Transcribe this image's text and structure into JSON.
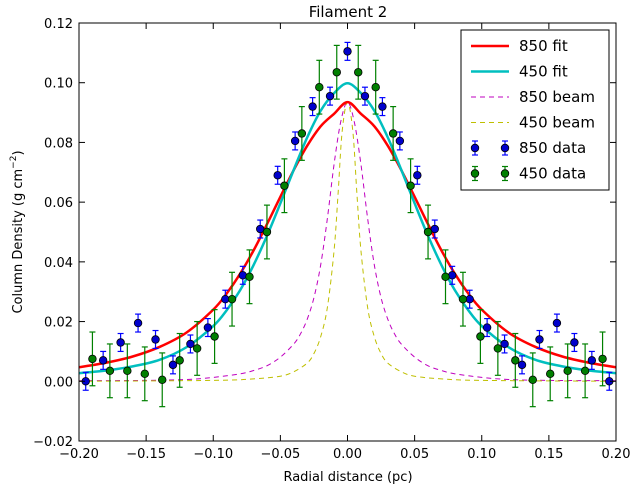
{
  "chart_data": {
    "type": "line",
    "title": "Filament 2",
    "xlabel": "Radial distance (pc)",
    "ylabel": "Column Density (g cm",
    "ylabel_sup": "−2",
    "ylabel_close": ")",
    "xlim": [
      -0.2,
      0.2
    ],
    "ylim": [
      -0.02,
      0.12
    ],
    "xticks": [
      -0.2,
      -0.15,
      -0.1,
      -0.05,
      0.0,
      0.05,
      0.1,
      0.15,
      0.2
    ],
    "xtick_labels": [
      "−0.20",
      "−0.15",
      "−0.10",
      "−0.05",
      "0.00",
      "0.05",
      "0.10",
      "0.15",
      "0.20"
    ],
    "yticks": [
      -0.02,
      0.0,
      0.02,
      0.04,
      0.06,
      0.08,
      0.1,
      0.12
    ],
    "ytick_labels": [
      "−0.02",
      "0.00",
      "0.02",
      "0.04",
      "0.06",
      "0.08",
      "0.10",
      "0.12"
    ],
    "grid": false,
    "legend_position": "top-right",
    "series": [
      {
        "name": "850 fit",
        "kind": "line",
        "color": "#ff0000",
        "x": [
          -0.2,
          -0.18,
          -0.16,
          -0.14,
          -0.12,
          -0.1,
          -0.09,
          -0.08,
          -0.07,
          -0.06,
          -0.05,
          -0.04,
          -0.03,
          -0.02,
          -0.01,
          0,
          0.01,
          0.02,
          0.03,
          0.04,
          0.05,
          0.06,
          0.07,
          0.08,
          0.09,
          0.1,
          0.12,
          0.14,
          0.16,
          0.18,
          0.2
        ],
        "y": [
          0.0047,
          0.0062,
          0.0083,
          0.0115,
          0.0163,
          0.024,
          0.0294,
          0.036,
          0.0438,
          0.0526,
          0.0618,
          0.0708,
          0.0789,
          0.0854,
          0.0896,
          0.0935,
          0.0896,
          0.0854,
          0.0789,
          0.0708,
          0.0618,
          0.0526,
          0.0438,
          0.036,
          0.0294,
          0.024,
          0.0163,
          0.0115,
          0.0083,
          0.0062,
          0.0047
        ]
      },
      {
        "name": "450 fit",
        "kind": "line",
        "color": "#00bfbf",
        "x": [
          -0.2,
          -0.18,
          -0.16,
          -0.14,
          -0.12,
          -0.1,
          -0.09,
          -0.08,
          -0.07,
          -0.06,
          -0.05,
          -0.04,
          -0.03,
          -0.02,
          -0.01,
          0,
          0.01,
          0.02,
          0.03,
          0.04,
          0.05,
          0.06,
          0.07,
          0.08,
          0.09,
          0.1,
          0.12,
          0.14,
          0.16,
          0.18,
          0.2
        ],
        "y": [
          0.0027,
          0.0036,
          0.005,
          0.0072,
          0.0114,
          0.0185,
          0.0238,
          0.0305,
          0.0389,
          0.0487,
          0.0596,
          0.0709,
          0.0817,
          0.0906,
          0.0965,
          0.0998,
          0.0965,
          0.0906,
          0.0817,
          0.0709,
          0.0596,
          0.0487,
          0.0389,
          0.0305,
          0.0238,
          0.0185,
          0.0114,
          0.0072,
          0.005,
          0.0036,
          0.0027
        ]
      },
      {
        "name": "850 beam",
        "kind": "dashed",
        "color": "#bf00bf",
        "x": [
          -0.2,
          -0.15,
          -0.12,
          -0.1,
          -0.08,
          -0.07,
          -0.06,
          -0.05,
          -0.04,
          -0.035,
          -0.03,
          -0.025,
          -0.02,
          -0.015,
          -0.01,
          -0.005,
          0,
          0.005,
          0.01,
          0.015,
          0.02,
          0.025,
          0.03,
          0.035,
          0.04,
          0.05,
          0.06,
          0.07,
          0.08,
          0.1,
          0.12,
          0.15,
          0.2
        ],
        "y": [
          0.0002,
          0.0003,
          0.0006,
          0.0013,
          0.0025,
          0.0036,
          0.0052,
          0.0081,
          0.0125,
          0.0159,
          0.0208,
          0.028,
          0.0389,
          0.0545,
          0.0727,
          0.087,
          0.0935,
          0.087,
          0.0727,
          0.0545,
          0.0389,
          0.028,
          0.0208,
          0.0159,
          0.0125,
          0.0081,
          0.0052,
          0.0036,
          0.0025,
          0.0013,
          0.0006,
          0.0003,
          0.0002
        ]
      },
      {
        "name": "450 beam",
        "kind": "dashed",
        "color": "#bfbf00",
        "x": [
          -0.2,
          -0.1,
          -0.07,
          -0.05,
          -0.04,
          -0.03,
          -0.025,
          -0.02,
          -0.015,
          -0.01,
          -0.007,
          -0.004,
          0,
          0.004,
          0.007,
          0.01,
          0.015,
          0.02,
          0.025,
          0.03,
          0.04,
          0.05,
          0.07,
          0.1,
          0.2
        ],
        "y": [
          0.0,
          0.0003,
          0.0008,
          0.0017,
          0.0032,
          0.0061,
          0.0093,
          0.0149,
          0.0247,
          0.0438,
          0.0629,
          0.0836,
          0.0935,
          0.0836,
          0.0629,
          0.0438,
          0.0247,
          0.0149,
          0.0093,
          0.0061,
          0.0032,
          0.0017,
          0.0008,
          0.0003,
          0.0
        ]
      },
      {
        "name": "850 data",
        "kind": "errorbar",
        "color": "#0000cc",
        "ecolor": "#0000ff",
        "x": [
          -0.195,
          -0.182,
          -0.169,
          -0.156,
          -0.143,
          -0.13,
          -0.117,
          -0.104,
          -0.091,
          -0.078,
          -0.065,
          -0.052,
          -0.039,
          -0.026,
          -0.013,
          0,
          0.013,
          0.026,
          0.039,
          0.052,
          0.065,
          0.078,
          0.091,
          0.104,
          0.117,
          0.13,
          0.143,
          0.156,
          0.169,
          0.182,
          0.195
        ],
        "y": [
          0.0,
          0.007,
          0.013,
          0.0195,
          0.014,
          0.0055,
          0.0125,
          0.018,
          0.0275,
          0.0355,
          0.051,
          0.069,
          0.0805,
          0.092,
          0.0955,
          0.1105,
          0.0955,
          0.092,
          0.0805,
          0.069,
          0.051,
          0.0355,
          0.0275,
          0.018,
          0.0125,
          0.0055,
          0.014,
          0.0195,
          0.013,
          0.007,
          0.0
        ],
        "yerr": [
          0.003,
          0.003,
          0.003,
          0.003,
          0.003,
          0.003,
          0.003,
          0.003,
          0.003,
          0.003,
          0.003,
          0.003,
          0.003,
          0.003,
          0.003,
          0.003,
          0.003,
          0.003,
          0.003,
          0.003,
          0.003,
          0.003,
          0.003,
          0.003,
          0.003,
          0.003,
          0.003,
          0.003,
          0.003,
          0.003,
          0.003
        ]
      },
      {
        "name": "450 data",
        "kind": "errorbar",
        "color": "#007f00",
        "ecolor": "#008000",
        "x": [
          -0.19,
          -0.177,
          -0.164,
          -0.151,
          -0.138,
          -0.125,
          -0.112,
          -0.099,
          -0.086,
          -0.073,
          -0.06,
          -0.047,
          -0.034,
          -0.021,
          -0.008,
          0.008,
          0.021,
          0.034,
          0.047,
          0.06,
          0.073,
          0.086,
          0.099,
          0.112,
          0.125,
          0.138,
          0.151,
          0.164,
          0.177,
          0.19
        ],
        "y": [
          0.0075,
          0.0035,
          0.0035,
          0.0025,
          0.0005,
          0.007,
          0.011,
          0.015,
          0.0275,
          0.035,
          0.05,
          0.0655,
          0.083,
          0.0985,
          0.1035,
          0.1035,
          0.0985,
          0.083,
          0.0655,
          0.05,
          0.035,
          0.0275,
          0.015,
          0.011,
          0.007,
          0.0005,
          0.0025,
          0.0035,
          0.0035,
          0.0075
        ],
        "yerr": [
          0.009,
          0.009,
          0.009,
          0.009,
          0.009,
          0.009,
          0.009,
          0.009,
          0.009,
          0.009,
          0.009,
          0.009,
          0.009,
          0.009,
          0.009,
          0.009,
          0.009,
          0.009,
          0.009,
          0.009,
          0.009,
          0.009,
          0.009,
          0.009,
          0.009,
          0.009,
          0.009,
          0.009,
          0.009,
          0.009
        ]
      }
    ]
  }
}
